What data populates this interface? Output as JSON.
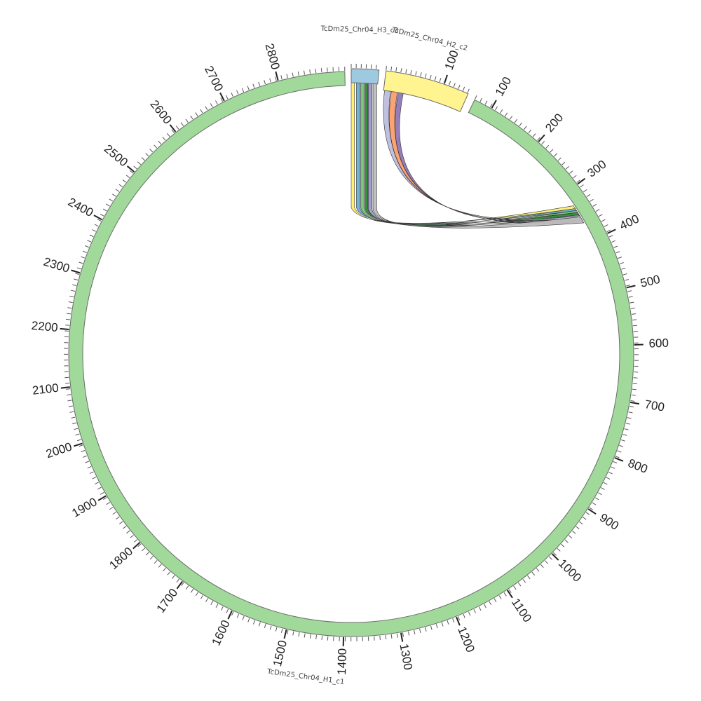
{
  "segments": [
    {
      "id": "h1",
      "name": "TcDm25_Chr04_H1_c1",
      "color": "#a1d99b",
      "ticks": [
        "100",
        "200",
        "300",
        "400",
        "500",
        "600",
        "700",
        "800",
        "900",
        "1000",
        "1100",
        "1200",
        "1300",
        "1400",
        "1500",
        "1600",
        "1700",
        "1800",
        "1900",
        "2000",
        "2100",
        "2200",
        "2300",
        "2400",
        "2500",
        "2600",
        "2700",
        "2800"
      ]
    },
    {
      "id": "h3",
      "name": "TcDm25_Chr04_H3_c3",
      "color": "#9ecae1",
      "ticks": []
    },
    {
      "id": "h2",
      "name": "TcDm25_Chr04_H2_c2",
      "color": "#fff48f",
      "ticks": [
        "100"
      ]
    }
  ],
  "links": [
    {
      "from": "h3",
      "to": "h1",
      "color": "#ffef6b"
    },
    {
      "from": "h3",
      "to": "h1",
      "color": "#6baed6"
    },
    {
      "from": "h3",
      "to": "h1",
      "color": "#74c476"
    },
    {
      "from": "h3",
      "to": "h1",
      "color": "#2c8a2c"
    },
    {
      "from": "h3",
      "to": "h1",
      "color": "#9e9ac8"
    },
    {
      "from": "h2",
      "to": "h1",
      "color": "#bcbddc"
    },
    {
      "from": "h2",
      "to": "h1",
      "color": "#fc9e6b"
    },
    {
      "from": "h2",
      "to": "h1",
      "color": "#8f77b5"
    },
    {
      "from": "h3",
      "to": "h1",
      "color": "#bdbdbd"
    }
  ]
}
